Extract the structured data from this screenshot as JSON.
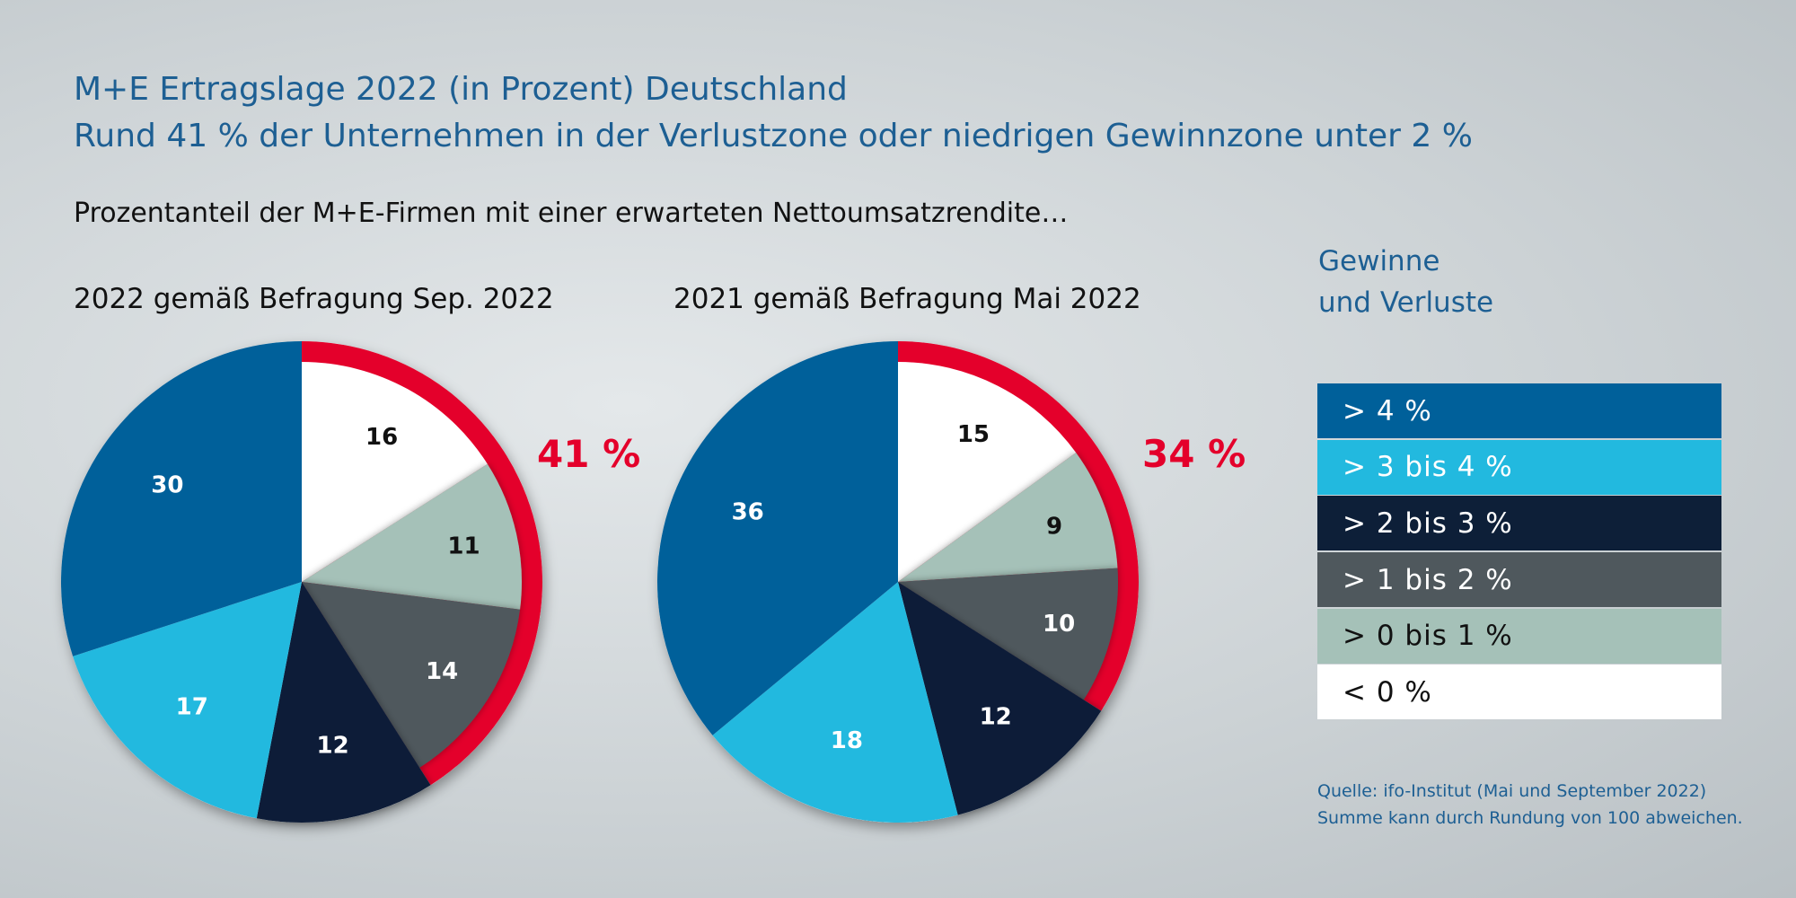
{
  "header": {
    "title_line1": "M+E Ertragslage 2022 (in Prozent) Deutschland",
    "title_line2": "Rund 41 % der Unternehmen in der Verlustzone oder niedrigen Gewinnzone unter 2 %",
    "subtitle": "Prozentanteil der M+E-Firmen mit einer erwarteten Nettoumsatzrendite…"
  },
  "legend": {
    "heading_line1": "Gewinne",
    "heading_line2": "und Verluste",
    "items": [
      {
        "label": "> 4 %",
        "color": "#00609a",
        "text_color": "#ffffff"
      },
      {
        "label": "> 3 bis 4 %",
        "color": "#22b9df",
        "text_color": "#ffffff"
      },
      {
        "label": "> 2 bis 3 %",
        "color": "#0d1f38",
        "text_color": "#ffffff"
      },
      {
        "label": "> 1 bis 2 %",
        "color": "#4f585d",
        "text_color": "#ffffff"
      },
      {
        "label": "> 0 bis 1 %",
        "color": "#a5c1b8",
        "text_color": "#111111"
      },
      {
        "label": "< 0 %",
        "color": "#ffffff",
        "text_color": "#111111"
      }
    ]
  },
  "source": {
    "line1": "Quelle: ifo-Institut (Mai und September 2022)",
    "line2": "Summe kann durch Rundung von 100 abweichen."
  },
  "chart_data": [
    {
      "type": "pie",
      "title": "2022 gemäß Befragung Sep. 2022",
      "categories": [
        "< 0 %",
        "> 0 bis 1 %",
        "> 1 bis 2 %",
        "> 2 bis 3 %",
        "> 3 bis 4 %",
        "> 4 %"
      ],
      "values": [
        16,
        11,
        14,
        12,
        17,
        30
      ],
      "highlight": {
        "label": "41 %",
        "categories": [
          "< 0 %",
          "> 0 bis 1 %",
          "> 1 bis 2 %"
        ],
        "color": "#e4002b"
      }
    },
    {
      "type": "pie",
      "title": "2021 gemäß Befragung Mai 2022",
      "categories": [
        "< 0 %",
        "> 0 bis 1 %",
        "> 1 bis 2 %",
        "> 2 bis 3 %",
        "> 3 bis 4 %",
        "> 4 %"
      ],
      "values": [
        15,
        9,
        10,
        12,
        18,
        36
      ],
      "highlight": {
        "label": "34 %",
        "categories": [
          "< 0 %",
          "> 0 bis 1 %",
          "> 1 bis 2 %"
        ],
        "color": "#e4002b"
      }
    }
  ]
}
